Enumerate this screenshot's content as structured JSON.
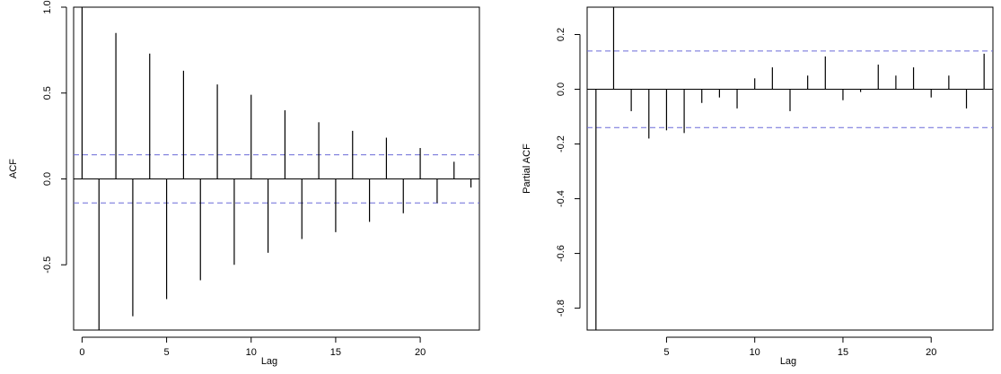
{
  "chart_data": [
    {
      "type": "bar",
      "subtype": "acf",
      "xlabel": "Lag",
      "ylabel": "ACF",
      "xlim": [
        -0.5,
        23.5
      ],
      "ylim": [
        -0.88,
        1.0
      ],
      "xticks": [
        0,
        5,
        10,
        15,
        20
      ],
      "yticks": [
        -0.5,
        0.0,
        0.5,
        1.0
      ],
      "ytick_labels": [
        "-0.5",
        "0.0",
        "0.5",
        "1.0"
      ],
      "conf_bound": 0.14,
      "conf_color": "#6a6ad8",
      "x": [
        0,
        1,
        2,
        3,
        4,
        5,
        6,
        7,
        8,
        9,
        10,
        11,
        12,
        13,
        14,
        15,
        16,
        17,
        18,
        19,
        20,
        21,
        22,
        23
      ],
      "values": [
        1.0,
        -0.88,
        0.85,
        -0.8,
        0.73,
        -0.7,
        0.63,
        -0.59,
        0.55,
        -0.5,
        0.49,
        -0.43,
        0.4,
        -0.35,
        0.33,
        -0.31,
        0.28,
        -0.25,
        0.24,
        -0.2,
        0.18,
        -0.14,
        0.1,
        -0.05
      ]
    },
    {
      "type": "bar",
      "subtype": "pacf",
      "xlabel": "Lag",
      "ylabel": "Partial ACF",
      "xlim": [
        0.5,
        23.5
      ],
      "ylim": [
        -0.88,
        0.3
      ],
      "xticks": [
        5,
        10,
        15,
        20
      ],
      "yticks": [
        -0.8,
        -0.6,
        -0.4,
        -0.2,
        0.0,
        0.2
      ],
      "ytick_labels": [
        "-0.8",
        "-0.6",
        "-0.4",
        "-0.2",
        "0.0",
        "0.2"
      ],
      "conf_bound": 0.14,
      "conf_color": "#6a6ad8",
      "x": [
        1,
        2,
        3,
        4,
        5,
        6,
        7,
        8,
        9,
        10,
        11,
        12,
        13,
        14,
        15,
        16,
        17,
        18,
        19,
        20,
        21,
        22,
        23
      ],
      "values": [
        -0.88,
        0.3,
        -0.08,
        -0.18,
        -0.15,
        -0.16,
        -0.05,
        -0.03,
        -0.07,
        0.04,
        0.08,
        -0.08,
        0.05,
        0.12,
        -0.04,
        -0.01,
        0.09,
        0.05,
        0.08,
        -0.03,
        0.05,
        -0.07,
        0.13
      ]
    }
  ]
}
